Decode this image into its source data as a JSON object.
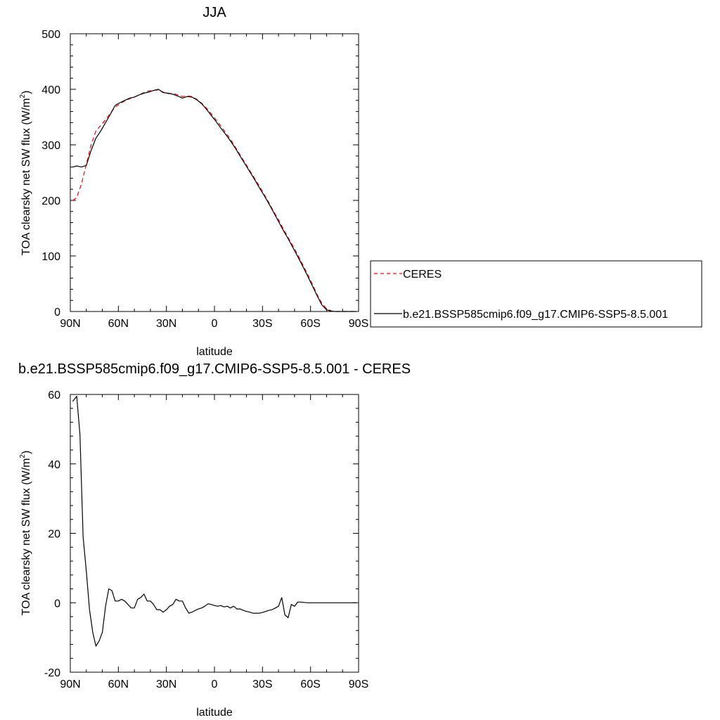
{
  "chart_data": [
    {
      "type": "line",
      "title": "JJA",
      "xlabel": "latitude",
      "ylabel_main": "TOA clearsky net SW flux (W/m",
      "ylabel_sup": "2",
      "ylabel_close": ")",
      "xlim": [
        90,
        -90
      ],
      "ylim": [
        0,
        500
      ],
      "xticks": [
        90,
        60,
        30,
        0,
        -30,
        -60,
        -90
      ],
      "xtick_labels": [
        "90N",
        "60N",
        "30N",
        "0",
        "30S",
        "60S",
        "90S"
      ],
      "yticks": [
        0,
        100,
        200,
        300,
        400,
        500
      ],
      "ytick_labels": [
        "0",
        "100",
        "200",
        "300",
        "400",
        "500"
      ],
      "legend_placement": "outside-right",
      "series": [
        {
          "name": "CERES",
          "color": "#ff0000",
          "style": "dashed",
          "x": [
            88.5,
            86,
            83,
            80,
            77,
            74,
            71,
            68,
            65,
            62,
            59,
            56,
            53,
            50,
            47,
            44,
            41,
            38,
            35,
            32,
            29,
            26,
            23,
            20,
            17,
            14,
            11,
            8,
            5,
            2,
            -1,
            -4,
            -7,
            -10,
            -13,
            -16,
            -19,
            -22,
            -25,
            -28,
            -31,
            -34,
            -37,
            -40,
            -43,
            -46,
            -49,
            -52,
            -55,
            -58,
            -61,
            -64,
            -67,
            -70,
            -73,
            -76,
            -79,
            -82,
            -85,
            -88.5
          ],
          "y": [
            200,
            205,
            230,
            265,
            300,
            325,
            335,
            345,
            357,
            368,
            374,
            379,
            383,
            386,
            390,
            394,
            397,
            398,
            399,
            395,
            392,
            393,
            390,
            387,
            388,
            387,
            382,
            375,
            366,
            356,
            345,
            334,
            322,
            310,
            296,
            282,
            268,
            254,
            240,
            226,
            211,
            196,
            180,
            165,
            149,
            133,
            118,
            102,
            85,
            68,
            50,
            31,
            15,
            5,
            1,
            0,
            0,
            0,
            0,
            0
          ]
        },
        {
          "name": "b.e21.BSSP585cmip6.f09_g17.CMIP6-SSP5-8.5.001",
          "color": "#000000",
          "style": "solid",
          "x": [
            88.5,
            86,
            83,
            80,
            77,
            74,
            71,
            68,
            65,
            62,
            59,
            56,
            53,
            50,
            47,
            44,
            41,
            38,
            35,
            32,
            29,
            26,
            23,
            20,
            17,
            14,
            11,
            8,
            5,
            2,
            -1,
            -4,
            -7,
            -10,
            -13,
            -16,
            -19,
            -22,
            -25,
            -28,
            -31,
            -34,
            -37,
            -40,
            -43,
            -46,
            -49,
            -52,
            -55,
            -58,
            -61,
            -64,
            -67,
            -70,
            -73,
            -76,
            -79,
            -82,
            -85,
            -88.5
          ],
          "y": [
            260,
            262,
            260,
            263,
            290,
            312,
            325,
            340,
            355,
            371,
            376,
            380,
            384,
            386,
            390,
            393,
            395,
            398,
            400,
            394,
            393,
            391,
            388,
            384,
            387,
            386,
            381,
            374,
            364,
            353,
            342,
            330,
            319,
            307,
            294,
            280,
            266,
            252,
            238,
            223,
            209,
            194,
            178,
            162,
            146,
            131,
            115,
            99,
            82,
            65,
            47,
            29,
            12,
            3,
            0.5,
            0,
            0,
            0,
            0,
            0
          ]
        }
      ]
    },
    {
      "type": "line",
      "title": "b.e21.BSSP585cmip6.f09_g17.CMIP6-SSP5-8.5.001 - CERES",
      "xlabel": "latitude",
      "ylabel_main": "TOA clearsky net SW flux (W/m",
      "ylabel_sup": "2",
      "ylabel_close": ")",
      "xlim": [
        90,
        -90
      ],
      "ylim": [
        -20,
        60
      ],
      "xticks": [
        90,
        60,
        30,
        0,
        -30,
        -60,
        -90
      ],
      "xtick_labels": [
        "90N",
        "60N",
        "30N",
        "0",
        "30S",
        "60S",
        "90S"
      ],
      "yticks": [
        -20,
        0,
        20,
        40,
        60
      ],
      "ytick_labels": [
        "-20",
        "0",
        "20",
        "40",
        "60"
      ],
      "series": [
        {
          "color": "#000000",
          "style": "solid",
          "x": [
            88.5,
            86,
            84,
            82,
            80,
            78,
            76,
            74,
            72,
            70,
            68,
            66,
            64,
            62,
            60,
            58,
            56,
            54,
            52,
            50,
            48,
            46,
            44,
            42,
            40,
            38,
            36,
            34,
            32,
            30,
            28,
            26,
            24,
            22,
            20,
            18,
            16,
            14,
            12,
            10,
            8,
            6,
            4,
            2,
            0,
            -2,
            -4,
            -6,
            -8,
            -10,
            -12,
            -14,
            -16,
            -18,
            -20,
            -22,
            -24,
            -26,
            -28,
            -30,
            -32,
            -34,
            -36,
            -38,
            -40,
            -42,
            -44,
            -46,
            -48,
            -50,
            -52,
            -54,
            -56,
            -58,
            -60,
            -62,
            -64,
            -66,
            -68,
            -70,
            -72,
            -74,
            -76,
            -78,
            -80,
            -82,
            -84,
            -86,
            -88.5
          ],
          "y": [
            58,
            59.5,
            48.5,
            19,
            9,
            -2,
            -8.5,
            -12.5,
            -11,
            -8.5,
            -1,
            4,
            3.5,
            0.5,
            0.5,
            1,
            0.5,
            -0.5,
            -1.5,
            -1.5,
            1,
            1.5,
            2.5,
            0.5,
            0.5,
            -0.5,
            -2,
            -2,
            -2.7,
            -2,
            -1,
            -0.5,
            1,
            0.5,
            0.5,
            -1.5,
            -3,
            -2.7,
            -2.2,
            -1.8,
            -1.5,
            -1,
            -0.3,
            -0.5,
            -0.8,
            -1,
            -0.8,
            -1.2,
            -1,
            -1.5,
            -1,
            -1.8,
            -1.8,
            -2.2,
            -2.5,
            -2.7,
            -3,
            -3,
            -3,
            -2.8,
            -2.5,
            -2.2,
            -2,
            -1.5,
            -1,
            1.5,
            -3.5,
            -4.3,
            -0.5,
            -1,
            0.2,
            0.2,
            0.1,
            0,
            0,
            0,
            0,
            0,
            0,
            0,
            0,
            0,
            0,
            0,
            0,
            0,
            0,
            0,
            0
          ]
        }
      ]
    }
  ]
}
